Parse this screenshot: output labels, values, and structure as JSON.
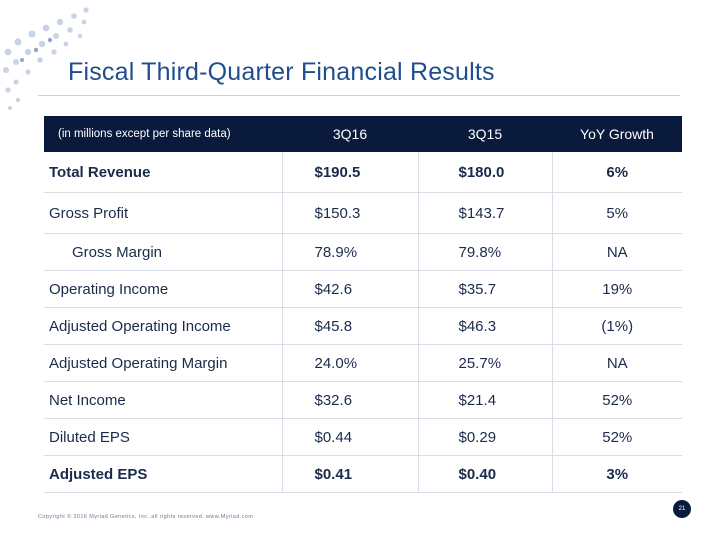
{
  "slide": {
    "title": "Fiscal Third-Quarter Financial Results",
    "footer": "Copyright © 2016 Myriad Genetics, Inc. all rights reserved. www.Myriad.com",
    "page_number": "21"
  },
  "table": {
    "header": {
      "note": "(in millions except per share data)",
      "col2": "3Q16",
      "col3": "3Q15",
      "col4": "YoY Growth"
    },
    "rows": [
      {
        "label": "Total Revenue",
        "q16": "$190.5",
        "q15": "$180.0",
        "growth": "6%"
      },
      {
        "label": "Gross Profit",
        "q16": "$150.3",
        "q15": "$143.7",
        "growth": "5%"
      },
      {
        "label": "Gross Margin",
        "q16": "78.9%",
        "q15": "79.8%",
        "growth": "NA"
      },
      {
        "label": "Operating Income",
        "q16": "$42.6",
        "q15": "$35.7",
        "growth": "19%"
      },
      {
        "label": "Adjusted Operating Income",
        "q16": "$45.8",
        "q15": "$46.3",
        "growth": "(1%)"
      },
      {
        "label": "Adjusted Operating Margin",
        "q16": "24.0%",
        "q15": "25.7%",
        "growth": "NA"
      },
      {
        "label": "Net Income",
        "q16": "$32.6",
        "q15": "$21.4",
        "growth": "52%"
      },
      {
        "label": "Diluted EPS",
        "q16": "$0.44",
        "q15": "$0.29",
        "growth": "52%"
      },
      {
        "label": "Adjusted EPS",
        "q16": "$0.41",
        "q15": "$0.40",
        "growth": "3%"
      }
    ]
  },
  "colors": {
    "title": "#1f4e8c",
    "header_bg": "#0a1a3c",
    "dots": "#c7d3e6"
  }
}
